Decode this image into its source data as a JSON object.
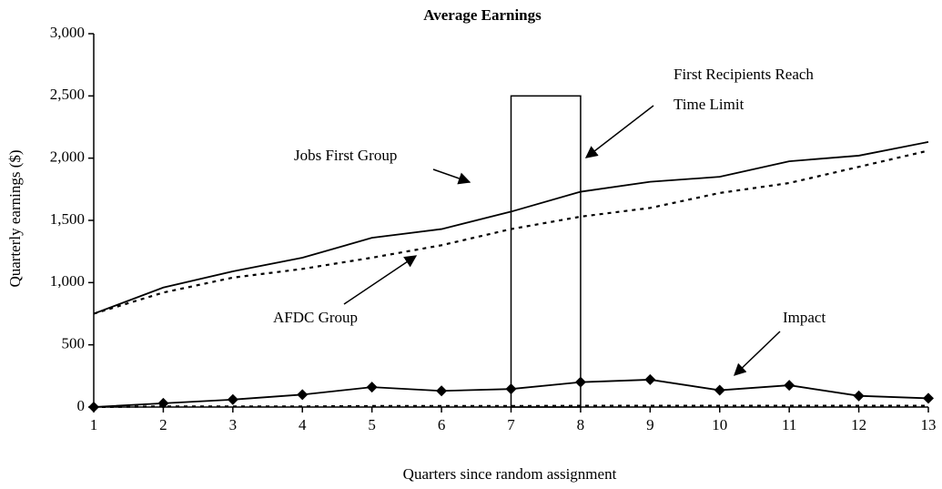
{
  "chart_data": {
    "type": "line",
    "title": "Average Earnings",
    "x_label": "Quarters since random assignment",
    "y_label": "Quarterly earnings ($)",
    "x": [
      1,
      2,
      3,
      4,
      5,
      6,
      7,
      8,
      9,
      10,
      11,
      12,
      13
    ],
    "series": [
      {
        "name": "Jobs First Group",
        "color": "#000000",
        "style": "solid",
        "marker": false,
        "values": [
          750,
          960,
          1090,
          1200,
          1360,
          1430,
          1570,
          1730,
          1810,
          1850,
          1975,
          2020,
          2130
        ]
      },
      {
        "name": "AFDC Group",
        "color": "#000000",
        "style": "dotted",
        "marker": false,
        "values": [
          750,
          920,
          1040,
          1110,
          1200,
          1300,
          1430,
          1530,
          1600,
          1720,
          1800,
          1930,
          2060
        ]
      },
      {
        "name": "Impact",
        "color": "#000000",
        "style": "solid",
        "marker": true,
        "values": [
          0,
          30,
          60,
          100,
          160,
          130,
          145,
          200,
          220,
          135,
          175,
          90,
          70
        ]
      },
      {
        "color": "#000000",
        "style": "dotted",
        "marker": false,
        "values": [
          0,
          5,
          5,
          5,
          8,
          8,
          8,
          10,
          10,
          10,
          10,
          10,
          10
        ]
      }
    ],
    "region": {
      "x": [
        7,
        8
      ],
      "y": [
        0,
        2500
      ]
    },
    "region_label": [
      "First Recipients Reach",
      "Time Limit"
    ],
    "xlim": [
      1,
      13
    ],
    "ylim": [
      0,
      3000
    ],
    "xticks": [
      1,
      2,
      3,
      4,
      5,
      6,
      7,
      8,
      9,
      10,
      11,
      12,
      13
    ],
    "yticks": [
      0,
      {
        "value": 500,
        "label": "500"
      },
      {
        "value": 1000,
        "label": "1,000"
      },
      {
        "value": 1500,
        "label": "1,500"
      },
      {
        "value": 2000,
        "label": "2,000"
      },
      {
        "value": 2500,
        "label": "2,500"
      },
      {
        "value": 3000,
        "label": "3,000"
      }
    ],
    "grid": false
  }
}
